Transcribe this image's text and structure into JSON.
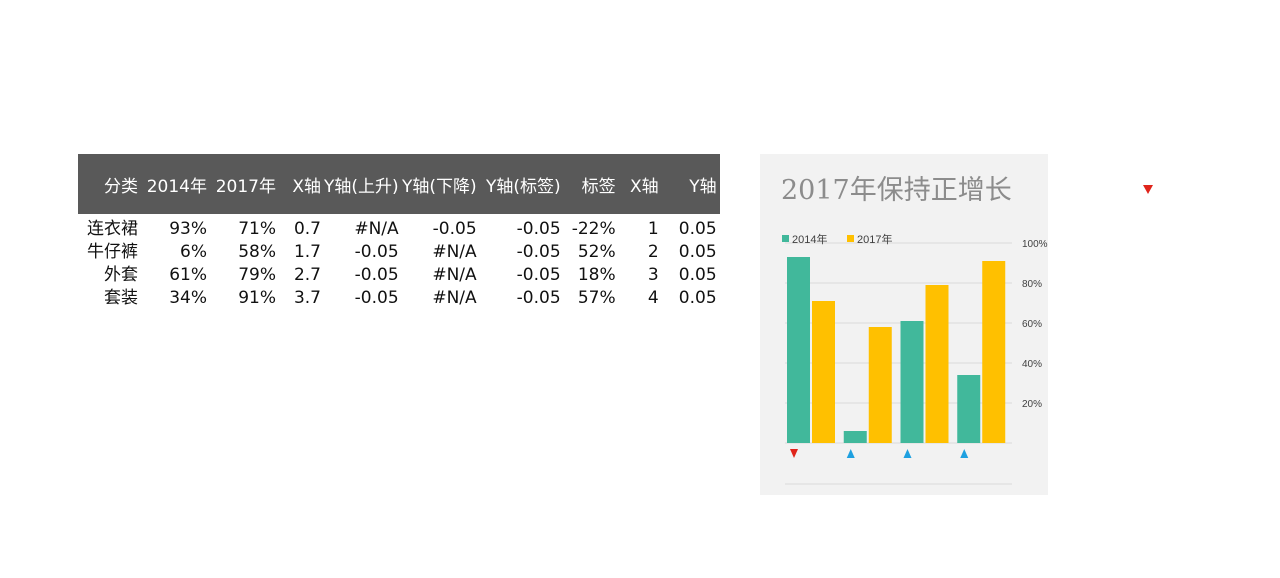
{
  "table": {
    "headers": [
      "分类",
      "2014年",
      "2017年",
      "X轴",
      "Y轴(上升)",
      "Y轴(下降)",
      "Y轴(标签)",
      "标签",
      "X轴",
      "Y轴"
    ],
    "rows": [
      [
        "连衣裙",
        "93%",
        "71%",
        "0.7",
        "#N/A",
        "-0.05",
        "-0.05",
        "-22%",
        "1",
        "0.05"
      ],
      [
        "牛仔裤",
        "6%",
        "58%",
        "1.7",
        "-0.05",
        "#N/A",
        "-0.05",
        "52%",
        "2",
        "0.05"
      ],
      [
        "外套",
        "61%",
        "79%",
        "2.7",
        "-0.05",
        "#N/A",
        "-0.05",
        "18%",
        "3",
        "0.05"
      ],
      [
        "套装",
        "34%",
        "91%",
        "3.7",
        "-0.05",
        "#N/A",
        "-0.05",
        "57%",
        "4",
        "0.05"
      ]
    ]
  },
  "chart_data": {
    "type": "bar",
    "title": "2017年保持正增长",
    "categories": [
      "连衣裙",
      "牛仔裤",
      "外套",
      "套装"
    ],
    "series": [
      {
        "name": "2014年",
        "values": [
          93,
          6,
          61,
          34
        ],
        "color": "#41b89b"
      },
      {
        "name": "2017年",
        "values": [
          71,
          58,
          79,
          91
        ],
        "color": "#ffc000"
      }
    ],
    "ylim": [
      0,
      100
    ],
    "yticks": [
      20,
      40,
      60,
      80,
      100
    ],
    "ytick_labels": [
      "20%",
      "40%",
      "60%",
      "80%",
      "100%"
    ],
    "y_axis_side": "right",
    "legend_position": "top-left",
    "grid": true,
    "change_markers": [
      {
        "direction": "down",
        "color": "#e0241b"
      },
      {
        "direction": "up",
        "color": "#1ea0e0"
      },
      {
        "direction": "up",
        "color": "#1ea0e0"
      },
      {
        "direction": "up",
        "color": "#1ea0e0"
      }
    ],
    "stray_marker": {
      "direction": "down",
      "color": "#e0241b"
    }
  }
}
